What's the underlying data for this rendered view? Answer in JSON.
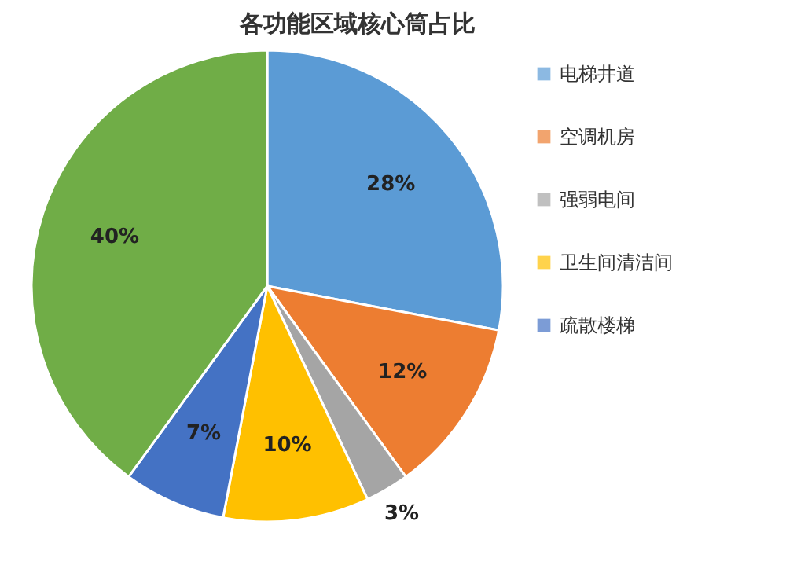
{
  "chart_data": {
    "type": "pie",
    "title": "各功能区域核心筒占比",
    "categories": [
      "电梯井道",
      "空调机房",
      "强弱电间",
      "卫生间清洁间",
      "疏散楼梯",
      null
    ],
    "values": [
      28,
      12,
      3,
      10,
      7,
      40
    ],
    "colors": [
      "#5b9bd5",
      "#ed7d31",
      "#a5a5a5",
      "#ffc000",
      "#4472c4",
      "#70ad47"
    ],
    "value_labels": [
      "28%",
      "12%",
      "3%",
      "10%",
      "7%",
      "40%"
    ],
    "legend": "right"
  }
}
